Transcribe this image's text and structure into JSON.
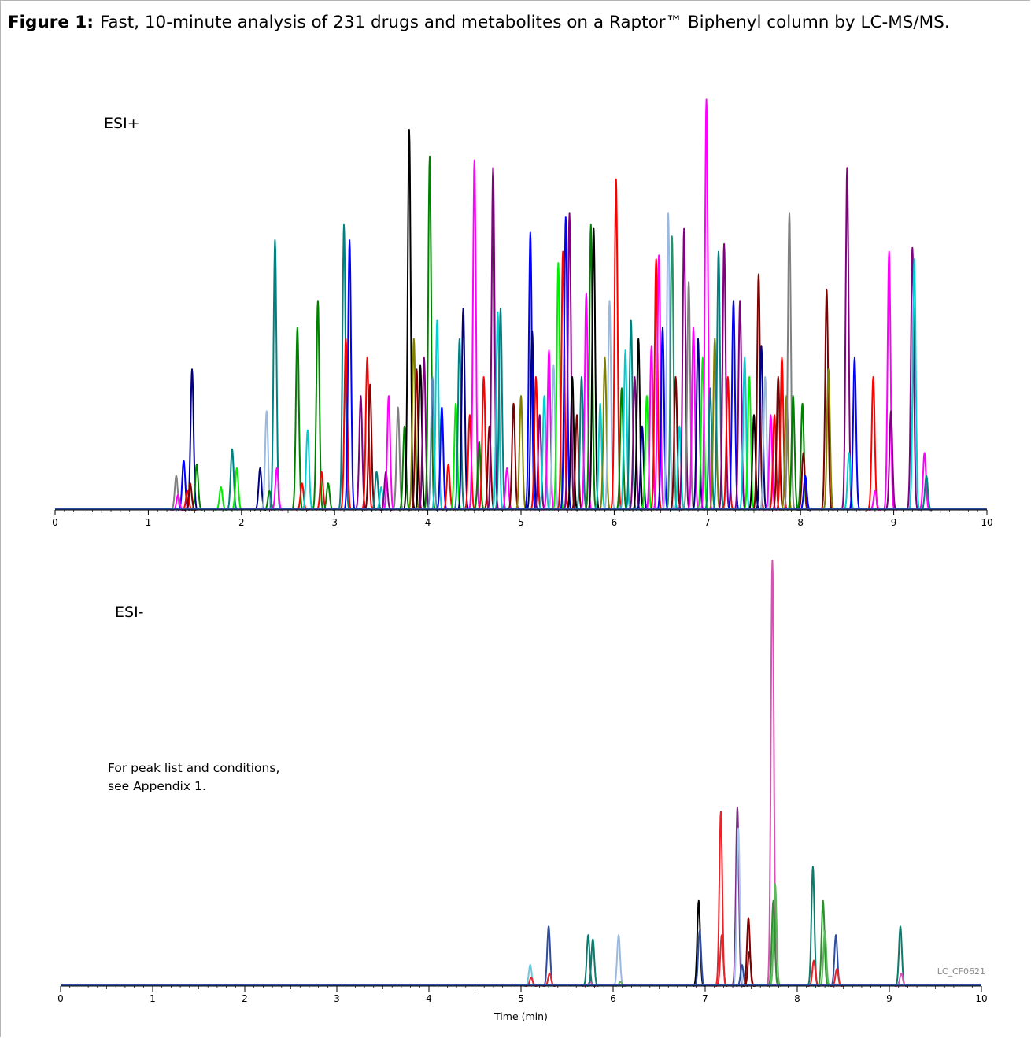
{
  "caption": {
    "label": "Figure 1:",
    "text": "Fast, 10-minute analysis of 231 drugs and metabolites on a Raptor™ Biphenyl column by LC-MS/MS."
  },
  "note": [
    "For peak list and conditions,",
    "see Appendix 1."
  ],
  "code": "LC_CF0621",
  "chart_data": [
    {
      "type": "line",
      "panel_label": "ESI+",
      "xlabel": "",
      "xlim": [
        0,
        10
      ],
      "xticks": [
        0,
        1,
        2,
        3,
        4,
        5,
        6,
        7,
        8,
        9,
        10
      ],
      "ylim": [
        0,
        1
      ],
      "grid": false,
      "trace_colors": [
        "#000080",
        "#ff0000",
        "#008080",
        "#800080",
        "#008000",
        "#ff00ff",
        "#0000ff",
        "#00ced1",
        "#7f0000",
        "#000000",
        "#00ee00",
        "#808000",
        "#9ab9e0",
        "#5b8ab5",
        "#808080",
        "#2a8f6a"
      ],
      "peaks": [
        [
          1.47,
          0.37,
          0
        ],
        [
          1.52,
          0.12,
          4
        ],
        [
          1.3,
          0.09,
          14
        ],
        [
          1.38,
          0.13,
          6
        ],
        [
          1.42,
          0.05,
          1
        ],
        [
          1.32,
          0.04,
          5
        ],
        [
          1.45,
          0.07,
          8
        ],
        [
          1.78,
          0.06,
          10
        ],
        [
          1.9,
          0.16,
          2
        ],
        [
          1.95,
          0.11,
          10
        ],
        [
          2.2,
          0.11,
          0
        ],
        [
          2.27,
          0.26,
          12
        ],
        [
          2.3,
          0.05,
          4
        ],
        [
          2.36,
          0.71,
          2
        ],
        [
          2.38,
          0.11,
          5
        ],
        [
          2.6,
          0.48,
          4
        ],
        [
          2.65,
          0.07,
          1
        ],
        [
          2.71,
          0.21,
          7
        ],
        [
          2.82,
          0.55,
          4
        ],
        [
          2.86,
          0.1,
          1
        ],
        [
          2.93,
          0.07,
          4
        ],
        [
          3.1,
          0.75,
          2
        ],
        [
          3.12,
          0.45,
          1
        ],
        [
          3.16,
          0.71,
          6
        ],
        [
          3.28,
          0.3,
          3
        ],
        [
          3.35,
          0.4,
          1
        ],
        [
          3.38,
          0.33,
          8
        ],
        [
          3.45,
          0.1,
          2
        ],
        [
          3.5,
          0.06,
          7
        ],
        [
          3.55,
          0.1,
          3
        ],
        [
          3.58,
          0.3,
          5
        ],
        [
          3.68,
          0.27,
          14
        ],
        [
          3.75,
          0.22,
          4
        ],
        [
          3.8,
          1.0,
          9
        ],
        [
          3.85,
          0.45,
          11
        ],
        [
          3.88,
          0.37,
          8
        ],
        [
          3.92,
          0.38,
          9
        ],
        [
          3.96,
          0.4,
          3
        ],
        [
          4.02,
          0.93,
          4
        ],
        [
          4.05,
          0.35,
          13
        ],
        [
          4.1,
          0.5,
          7
        ],
        [
          4.15,
          0.27,
          6
        ],
        [
          4.22,
          0.12,
          1
        ],
        [
          4.3,
          0.28,
          10
        ],
        [
          4.34,
          0.45,
          2
        ],
        [
          4.38,
          0.53,
          0
        ],
        [
          4.45,
          0.25,
          1
        ],
        [
          4.5,
          0.92,
          5
        ],
        [
          4.55,
          0.18,
          4
        ],
        [
          4.6,
          0.35,
          1
        ],
        [
          4.66,
          0.22,
          8
        ],
        [
          4.7,
          0.9,
          3
        ],
        [
          4.75,
          0.52,
          7
        ],
        [
          4.78,
          0.53,
          2
        ],
        [
          4.85,
          0.11,
          5
        ],
        [
          4.92,
          0.28,
          8
        ],
        [
          5.0,
          0.3,
          11
        ],
        [
          5.1,
          0.73,
          6
        ],
        [
          5.12,
          0.47,
          0
        ],
        [
          5.16,
          0.35,
          1
        ],
        [
          5.2,
          0.25,
          3
        ],
        [
          5.25,
          0.3,
          7
        ],
        [
          5.3,
          0.42,
          5
        ],
        [
          5.35,
          0.38,
          12
        ],
        [
          5.4,
          0.65,
          10
        ],
        [
          5.45,
          0.68,
          1
        ],
        [
          5.48,
          0.77,
          6
        ],
        [
          5.52,
          0.78,
          3
        ],
        [
          5.55,
          0.35,
          9
        ],
        [
          5.6,
          0.25,
          8
        ],
        [
          5.65,
          0.35,
          2
        ],
        [
          5.7,
          0.57,
          5
        ],
        [
          5.75,
          0.75,
          4
        ],
        [
          5.78,
          0.74,
          9
        ],
        [
          5.85,
          0.28,
          7
        ],
        [
          5.9,
          0.4,
          11
        ],
        [
          5.95,
          0.55,
          12
        ],
        [
          6.02,
          0.87,
          1
        ],
        [
          6.08,
          0.32,
          4
        ],
        [
          6.12,
          0.42,
          7
        ],
        [
          6.18,
          0.5,
          2
        ],
        [
          6.22,
          0.35,
          3
        ],
        [
          6.26,
          0.45,
          9
        ],
        [
          6.3,
          0.22,
          0
        ],
        [
          6.35,
          0.3,
          10
        ],
        [
          6.4,
          0.43,
          5
        ],
        [
          6.45,
          0.66,
          1
        ],
        [
          6.48,
          0.67,
          5
        ],
        [
          6.52,
          0.48,
          6
        ],
        [
          6.58,
          0.78,
          12
        ],
        [
          6.62,
          0.72,
          15
        ],
        [
          6.66,
          0.35,
          8
        ],
        [
          6.7,
          0.22,
          7
        ],
        [
          6.75,
          0.74,
          3
        ],
        [
          6.8,
          0.6,
          14
        ],
        [
          6.85,
          0.48,
          5
        ],
        [
          6.9,
          0.45,
          0
        ],
        [
          6.95,
          0.4,
          10
        ],
        [
          6.99,
          1.08,
          5
        ],
        [
          7.03,
          0.32,
          2
        ],
        [
          7.08,
          0.45,
          11
        ],
        [
          7.12,
          0.68,
          2
        ],
        [
          7.18,
          0.7,
          3
        ],
        [
          7.22,
          0.35,
          1
        ],
        [
          7.28,
          0.55,
          6
        ],
        [
          7.35,
          0.55,
          3
        ],
        [
          7.4,
          0.4,
          7
        ],
        [
          7.45,
          0.35,
          10
        ],
        [
          7.5,
          0.25,
          9
        ],
        [
          7.55,
          0.62,
          8
        ],
        [
          7.58,
          0.43,
          0
        ],
        [
          7.62,
          0.35,
          12
        ],
        [
          7.68,
          0.25,
          5
        ],
        [
          7.72,
          0.25,
          1
        ],
        [
          7.76,
          0.35,
          8
        ],
        [
          7.8,
          0.4,
          1
        ],
        [
          7.85,
          0.3,
          11
        ],
        [
          7.88,
          0.78,
          14
        ],
        [
          7.92,
          0.3,
          4
        ],
        [
          8.02,
          0.28,
          4
        ],
        [
          8.03,
          0.15,
          8
        ],
        [
          8.05,
          0.09,
          6
        ],
        [
          8.28,
          0.58,
          8
        ],
        [
          8.3,
          0.37,
          11
        ],
        [
          8.5,
          0.9,
          3
        ],
        [
          8.52,
          0.15,
          7
        ],
        [
          8.58,
          0.4,
          6
        ],
        [
          8.78,
          0.35,
          1
        ],
        [
          8.8,
          0.05,
          5
        ],
        [
          8.95,
          0.68,
          5
        ],
        [
          8.97,
          0.26,
          3
        ],
        [
          9.2,
          0.69,
          3
        ],
        [
          9.22,
          0.66,
          7
        ],
        [
          9.33,
          0.15,
          5
        ],
        [
          9.35,
          0.09,
          2
        ]
      ]
    },
    {
      "type": "line",
      "panel_label": "ESI-",
      "xlabel": "Time (min)",
      "xlim": [
        0,
        10
      ],
      "xticks": [
        0,
        1,
        2,
        3,
        4,
        5,
        6,
        7,
        8,
        9,
        10
      ],
      "ylim": [
        0,
        1
      ],
      "grid": false,
      "trace_colors": [
        "#2f4d9c",
        "#e8232a",
        "#0e7a6e",
        "#d256b0",
        "#7f0000",
        "#000000",
        "#5cb85c",
        "#2d8f2d",
        "#9ab9e0",
        "#6ec9df",
        "#7a3080",
        "#a6c8f0"
      ],
      "peaks": [
        [
          5.1,
          0.05,
          9
        ],
        [
          5.11,
          0.02,
          1
        ],
        [
          5.3,
          0.14,
          0
        ],
        [
          5.31,
          0.03,
          1
        ],
        [
          5.73,
          0.12,
          2
        ],
        [
          5.75,
          0.01,
          3
        ],
        [
          5.78,
          0.11,
          2
        ],
        [
          6.06,
          0.12,
          8
        ],
        [
          6.08,
          0.01,
          6
        ],
        [
          6.93,
          0.2,
          5
        ],
        [
          6.94,
          0.13,
          0
        ],
        [
          7.17,
          0.41,
          1
        ],
        [
          7.18,
          0.12,
          1
        ],
        [
          7.35,
          0.42,
          10
        ],
        [
          7.36,
          0.37,
          11
        ],
        [
          7.4,
          0.05,
          0
        ],
        [
          7.47,
          0.16,
          4
        ],
        [
          7.48,
          0.08,
          4
        ],
        [
          7.73,
          1.0,
          3
        ],
        [
          7.76,
          0.24,
          6
        ],
        [
          7.74,
          0.2,
          7
        ],
        [
          8.17,
          0.28,
          2
        ],
        [
          8.18,
          0.06,
          1
        ],
        [
          8.28,
          0.2,
          7
        ],
        [
          8.3,
          0.13,
          6
        ],
        [
          8.42,
          0.12,
          0
        ],
        [
          8.43,
          0.04,
          1
        ],
        [
          9.12,
          0.14,
          2
        ],
        [
          9.13,
          0.03,
          3
        ]
      ]
    }
  ]
}
